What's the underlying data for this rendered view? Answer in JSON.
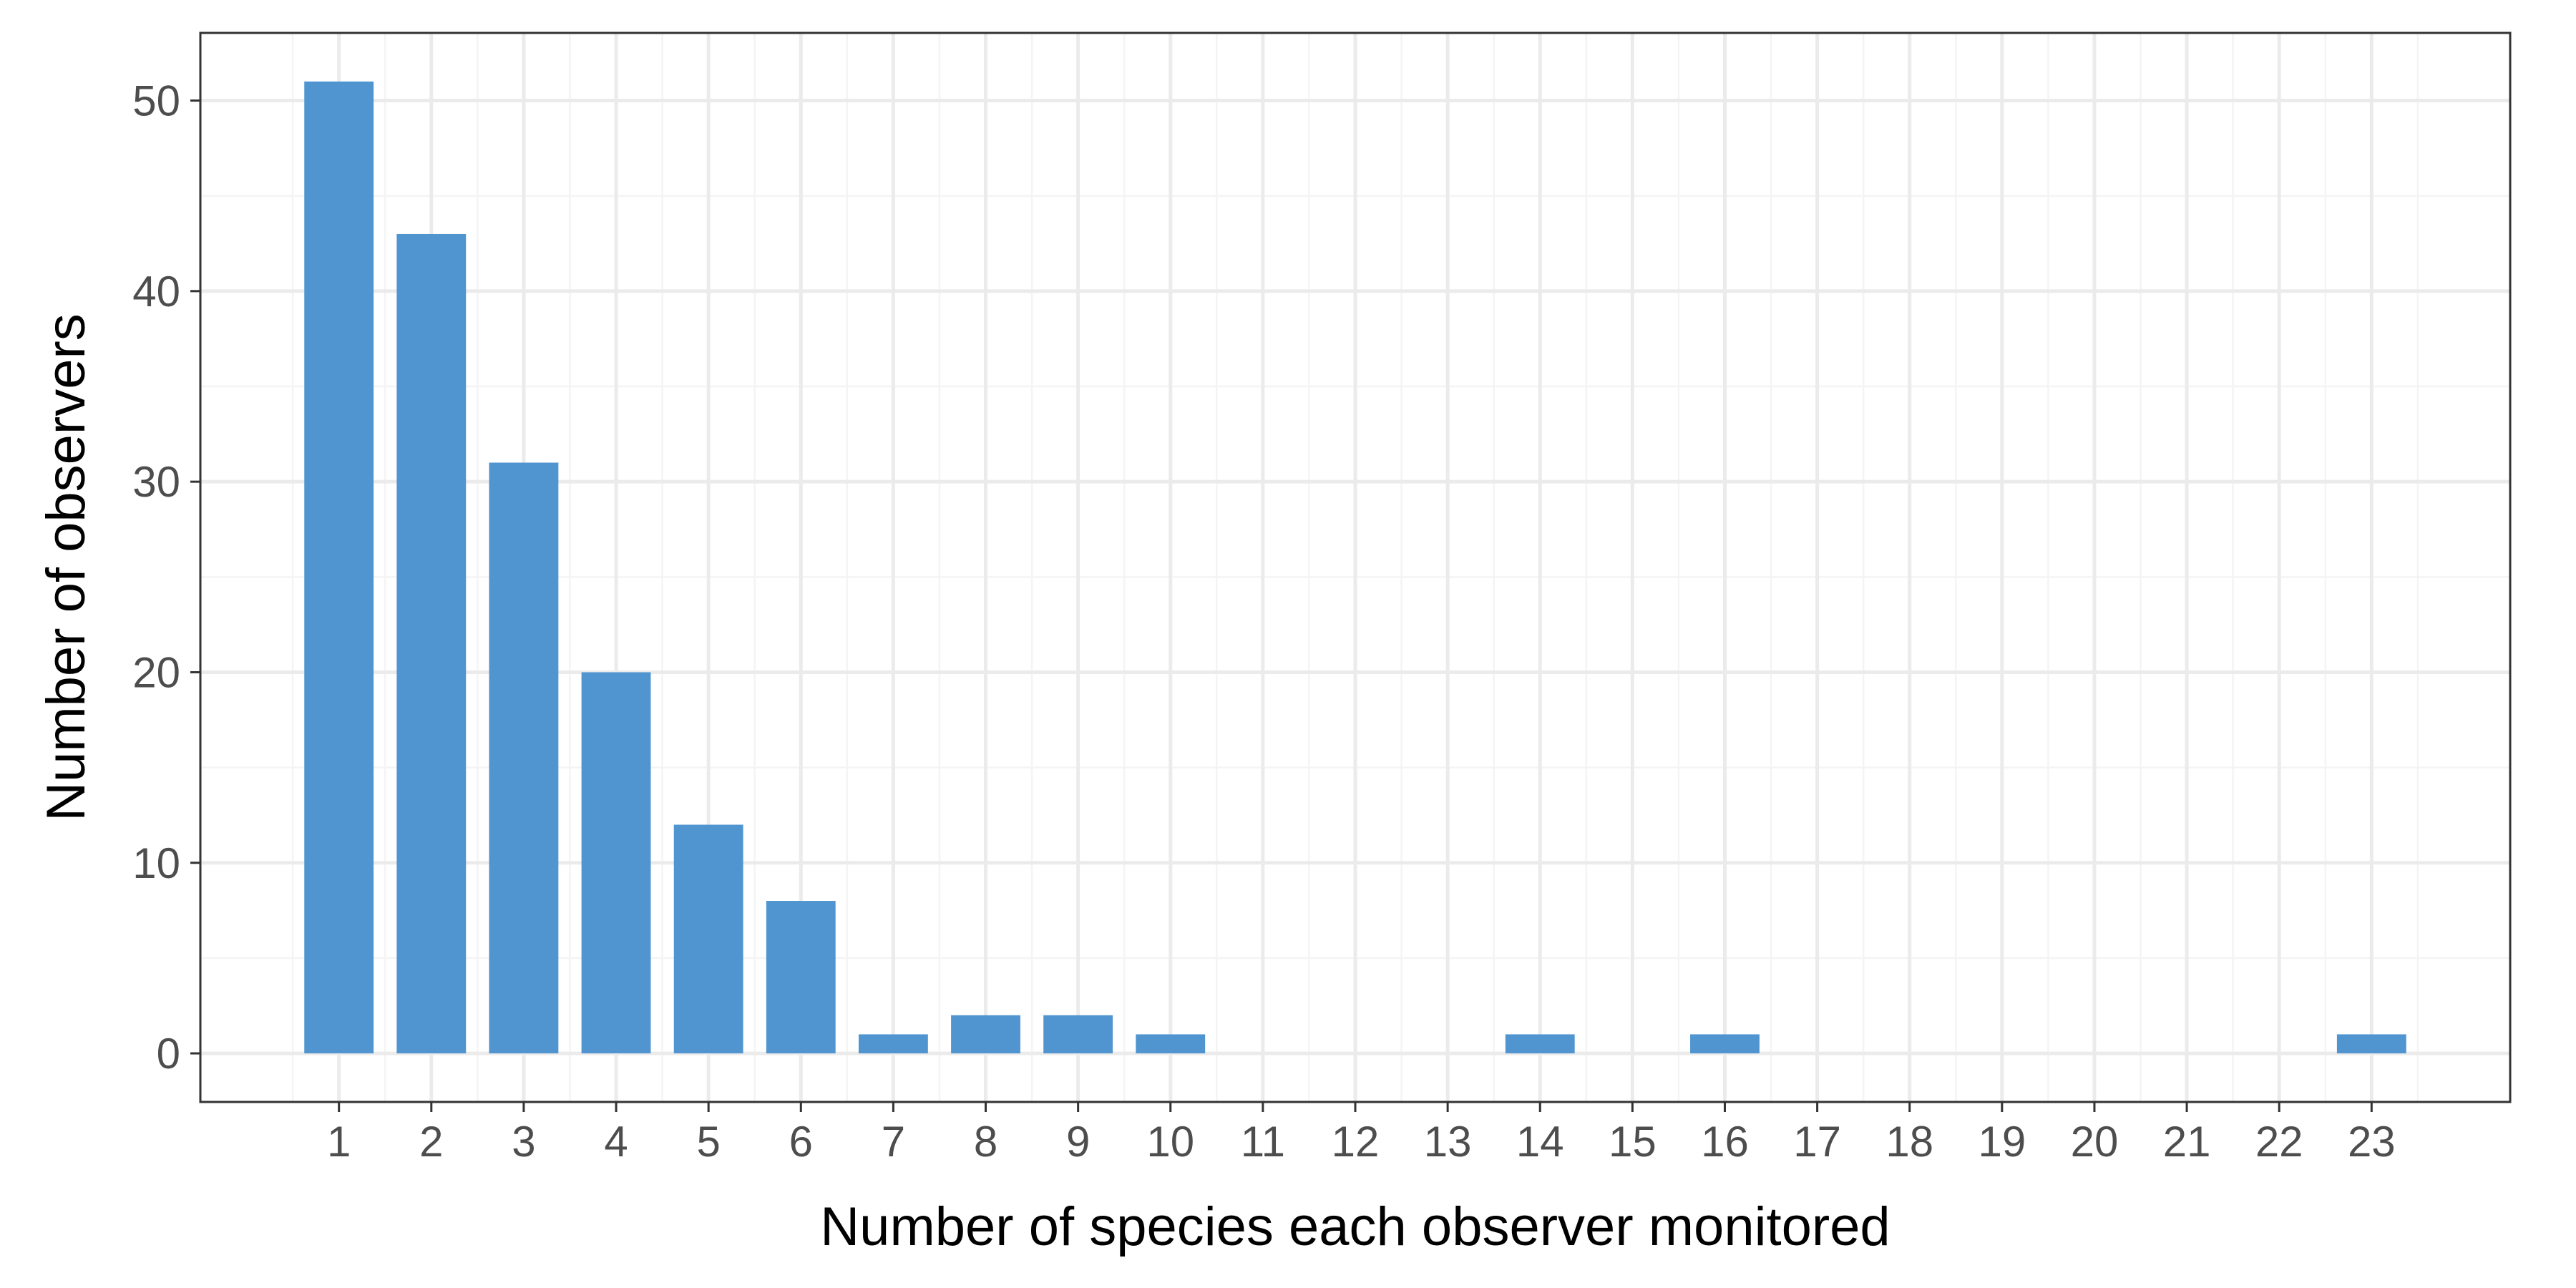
{
  "chart_data": {
    "type": "bar",
    "title": "",
    "xlabel": "Number of species each observer monitored",
    "ylabel": "Number of observers",
    "x": [
      1,
      2,
      3,
      4,
      5,
      6,
      7,
      8,
      9,
      10,
      14,
      16,
      23
    ],
    "values": [
      51,
      43,
      31,
      20,
      12,
      8,
      1,
      2,
      2,
      1,
      1,
      1,
      1
    ],
    "xticks": [
      "1",
      "2",
      "3",
      "4",
      "5",
      "6",
      "7",
      "8",
      "9",
      "10",
      "11",
      "12",
      "13",
      "14",
      "15",
      "16",
      "17",
      "18",
      "19",
      "20",
      "21",
      "22",
      "23"
    ],
    "yticks": [
      "0",
      "10",
      "20",
      "30",
      "40",
      "50"
    ],
    "xlim": [
      -0.5,
      24.5
    ],
    "ylim": [
      -2.55,
      53.55
    ],
    "grid": true,
    "legend": "none",
    "colors": {
      "bar": "#5095d0",
      "grid_major": "#ebebeb",
      "grid_minor": "#f4f4f4",
      "panel_border": "#333333",
      "tick_text": "#4d4d4d",
      "title_text": "#000000"
    }
  }
}
